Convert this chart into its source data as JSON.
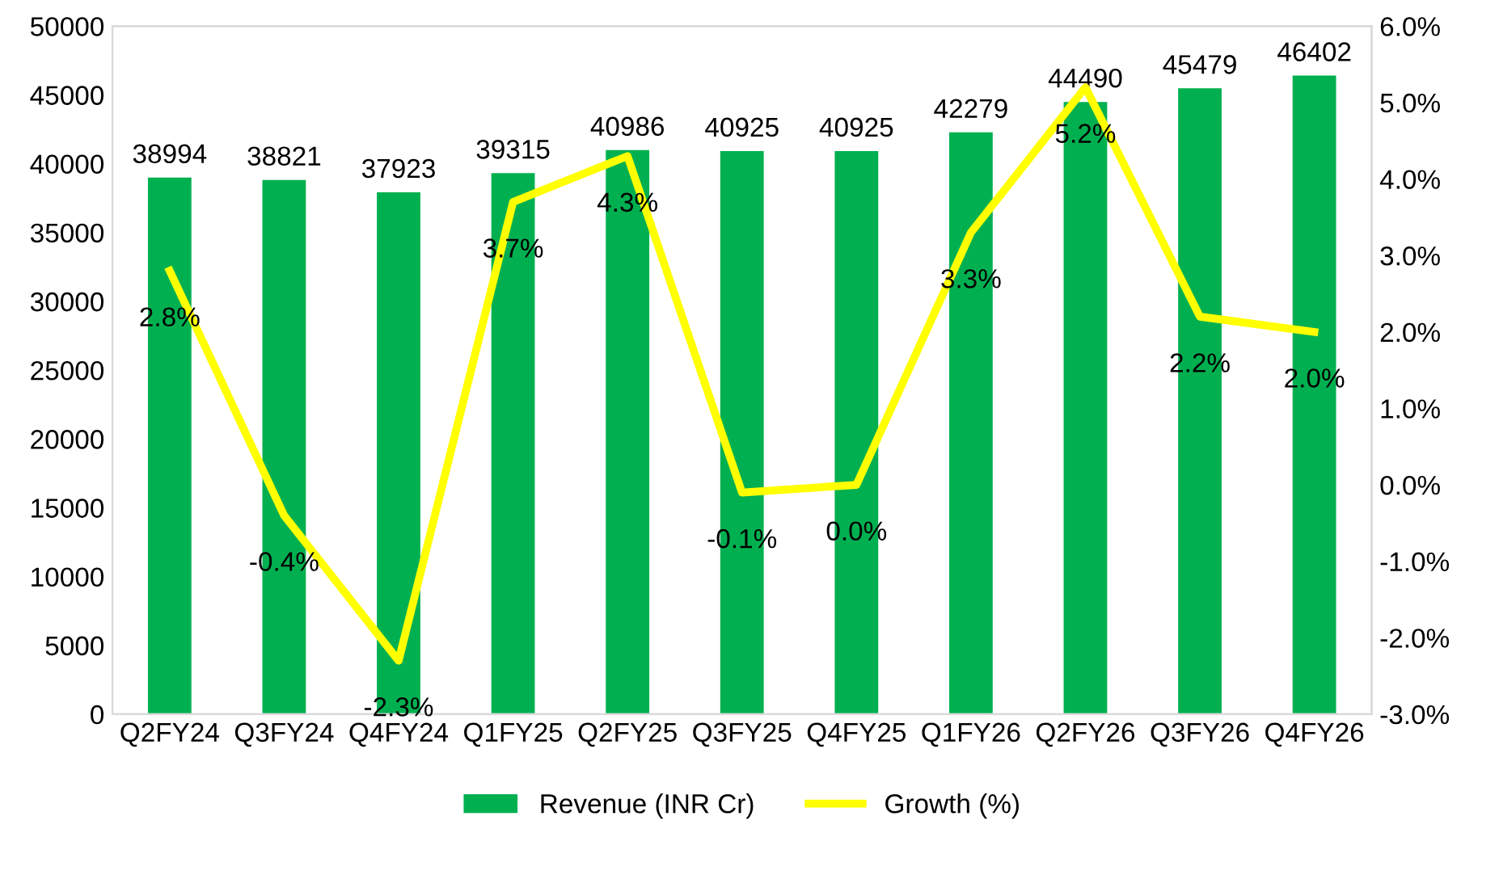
{
  "chart_data": {
    "type": "bar",
    "categories": [
      "Q2FY24",
      "Q3FY24",
      "Q4FY24",
      "Q1FY25",
      "Q2FY25",
      "Q3FY25",
      "Q4FY25",
      "Q1FY26",
      "Q2FY26",
      "Q3FY26",
      "Q4FY26"
    ],
    "series": [
      {
        "name": "Revenue (INR Cr)",
        "color": "#00b050",
        "values": [
          38994,
          38821,
          37923,
          39315,
          40986,
          40925,
          40925,
          42279,
          44490,
          45479,
          46402
        ],
        "value_labels": [
          "38994",
          "38821",
          "37923",
          "39315",
          "40986",
          "40925",
          "40925",
          "42279",
          "44490",
          "45479",
          "46402"
        ]
      },
      {
        "name": "Growth (%)",
        "type": "line",
        "axis": "y2",
        "color": "#ffff00",
        "values": [
          2.8,
          -0.4,
          -2.3,
          3.7,
          4.3,
          -0.1,
          0.0,
          3.3,
          5.2,
          2.2,
          2.0
        ],
        "value_labels": [
          "2.8%",
          "-0.4%",
          "-2.3%",
          "3.7%",
          "4.3%",
          "-0.1%",
          "0.0%",
          "3.3%",
          "5.2%",
          "2.2%",
          "2.0%"
        ]
      }
    ],
    "ylim": [
      0,
      50000
    ],
    "yticks": [
      0,
      5000,
      10000,
      15000,
      20000,
      25000,
      30000,
      35000,
      40000,
      45000,
      50000
    ],
    "y2lim": [
      -3,
      6
    ],
    "y2ticks": [
      {
        "value": -3,
        "label": "-3.0%"
      },
      {
        "value": -2,
        "label": "-2.0%"
      },
      {
        "value": -1,
        "label": "-1.0%"
      },
      {
        "value": 0,
        "label": "0.0%"
      },
      {
        "value": 1,
        "label": "1.0%"
      },
      {
        "value": 2,
        "label": "2.0%"
      },
      {
        "value": 3,
        "label": "3.0%"
      },
      {
        "value": 4,
        "label": "4.0%"
      },
      {
        "value": 5,
        "label": "5.0%"
      },
      {
        "value": 6,
        "label": "6.0%"
      }
    ],
    "legend": "bottom",
    "grid": false
  }
}
